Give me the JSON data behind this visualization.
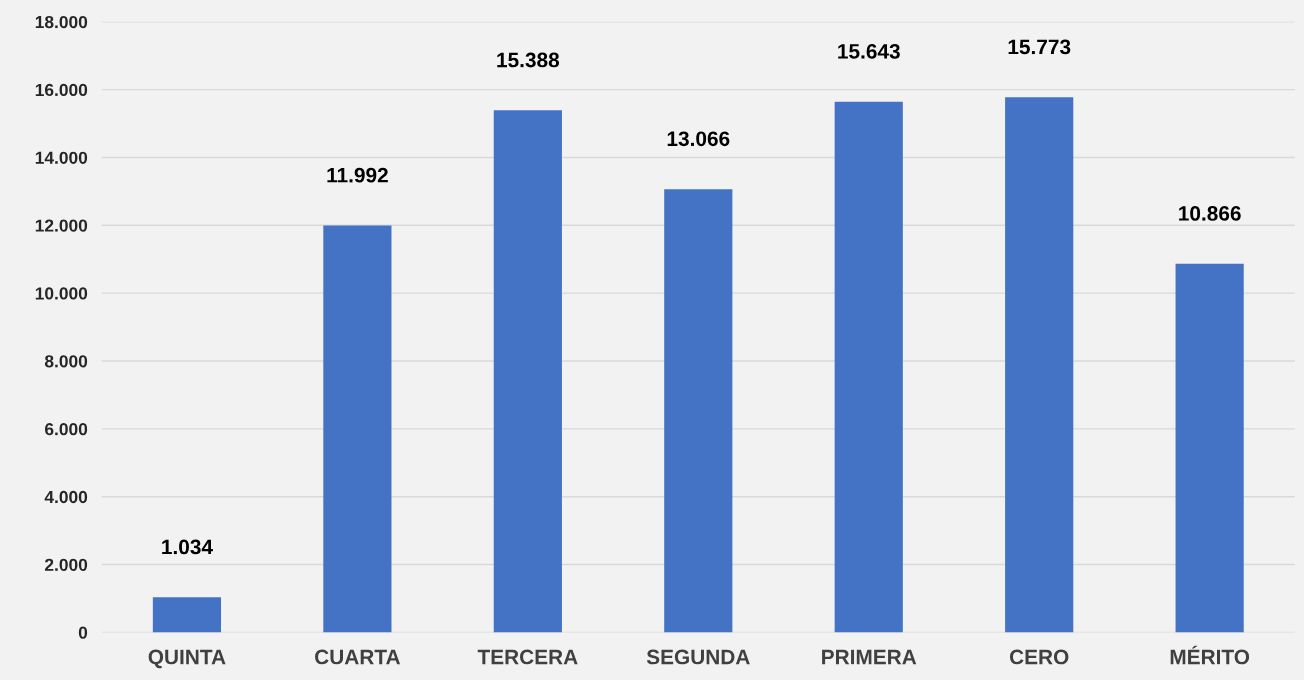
{
  "chart_data": {
    "type": "bar",
    "categories": [
      "QUINTA",
      "CUARTA",
      "TERCERA",
      "SEGUNDA",
      "PRIMERA",
      "CERO",
      "MÉRITO"
    ],
    "values": [
      1034,
      11992,
      15388,
      13066,
      15643,
      15773,
      10866
    ],
    "value_labels": [
      "1.034",
      "11.992",
      "15.388",
      "13.066",
      "15.643",
      "15.773",
      "10.866"
    ],
    "color": "#4472c4",
    "ylim": [
      0,
      18000
    ],
    "yticks": [
      0,
      {
        "value": 2000,
        "label": "2.000"
      },
      {
        "value": 4000,
        "label": "4.000"
      },
      {
        "value": 6000,
        "label": "6.000"
      },
      {
        "value": 8000,
        "label": "8.000"
      },
      {
        "value": 10000,
        "label": "10.000"
      },
      {
        "value": 12000,
        "label": "12.000"
      },
      {
        "value": 14000,
        "label": "14.000"
      },
      {
        "value": 16000,
        "label": "16.000"
      },
      {
        "value": 18000,
        "label": "18.000"
      }
    ],
    "grid": "y"
  }
}
